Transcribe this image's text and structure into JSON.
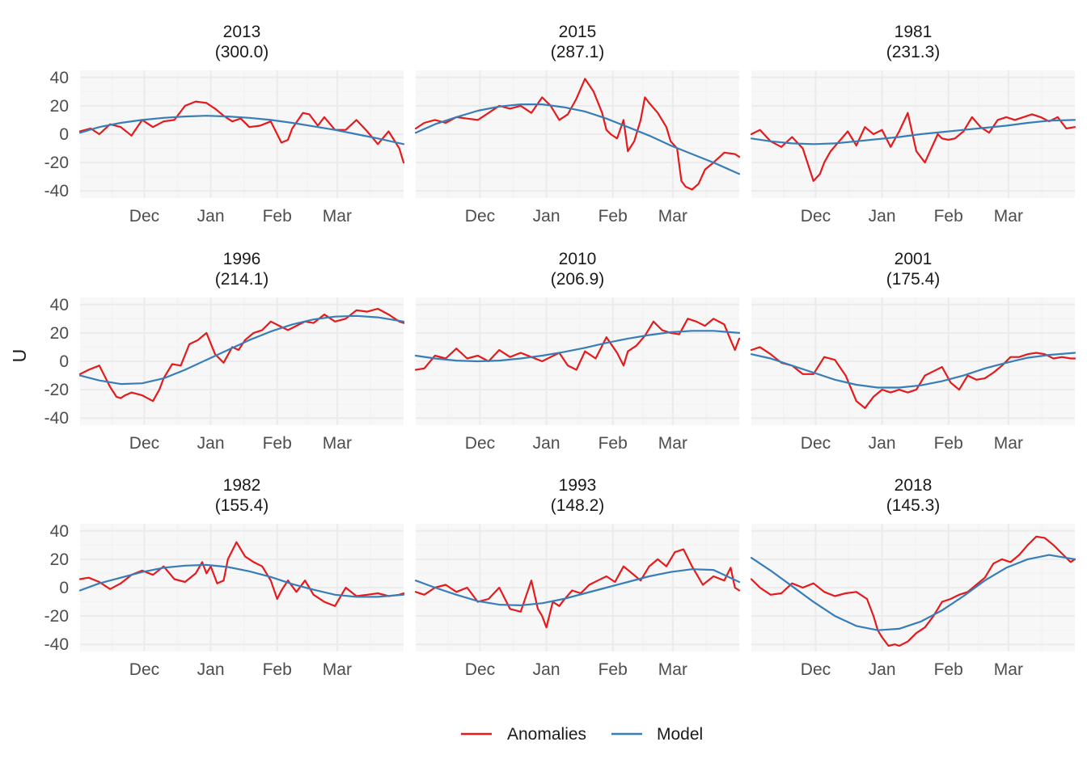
{
  "chart_data": {
    "type": "line",
    "ylabel": "U",
    "ylim": [
      -45,
      45
    ],
    "y_ticks": [
      40,
      20,
      0,
      -20,
      -40
    ],
    "x_ticks": [
      "Dec",
      "Jan",
      "Feb",
      "Mar"
    ],
    "x_tick_positions_days": [
      31,
      62,
      93,
      121
    ],
    "x_domain_days": [
      1,
      152
    ],
    "grid": true,
    "legend_position": "bottom",
    "colors": {
      "Anomalies": "#e41a1c",
      "Model": "#377eb8",
      "panel_bg": "#f7f7f7",
      "grid_major": "#ebebeb",
      "grid_minor": "#f2f2f2"
    },
    "legend": [
      {
        "name": "Anomalies",
        "color": "#e41a1c"
      },
      {
        "name": "Model",
        "color": "#377eb8"
      }
    ],
    "panels": [
      {
        "year": "2013",
        "value": "(300.0)",
        "anomalies": {
          "x": [
            1,
            6,
            10,
            15,
            20,
            25,
            30,
            35,
            40,
            45,
            50,
            55,
            60,
            64,
            68,
            72,
            76,
            80,
            85,
            90,
            95,
            98,
            100,
            105,
            108,
            112,
            115,
            120,
            125,
            130,
            135,
            140,
            145,
            150,
            152
          ],
          "y": [
            2,
            4,
            0,
            7,
            5,
            -1,
            10,
            5,
            9,
            10,
            20,
            23,
            22,
            18,
            13,
            9,
            11,
            5,
            6,
            9,
            -6,
            -4,
            4,
            15,
            14,
            6,
            12,
            3,
            3,
            10,
            2,
            -7,
            2,
            -10,
            -20
          ]
        },
        "model": {
          "x": [
            1,
            10,
            20,
            30,
            40,
            50,
            60,
            70,
            80,
            90,
            100,
            110,
            120,
            130,
            140,
            152
          ],
          "y": [
            1,
            5,
            8,
            10,
            11.5,
            12.5,
            13,
            12.5,
            11.5,
            10,
            8,
            5.5,
            3,
            0,
            -3,
            -7
          ]
        }
      },
      {
        "year": "2015",
        "value": "(287.1)",
        "anomalies": {
          "x": [
            1,
            5,
            10,
            15,
            20,
            25,
            30,
            35,
            40,
            45,
            50,
            55,
            60,
            64,
            68,
            72,
            76,
            80,
            84,
            88,
            90,
            92,
            95,
            98,
            100,
            103,
            106,
            108,
            110,
            114,
            118,
            120,
            123,
            125,
            127,
            130,
            133,
            136,
            140,
            145,
            150,
            152
          ],
          "y": [
            4,
            8,
            10,
            8,
            12,
            11,
            10,
            15,
            20,
            18,
            20,
            15,
            26,
            20,
            10,
            14,
            25,
            39,
            30,
            15,
            3,
            0,
            -3,
            10,
            -12,
            -5,
            10,
            26,
            22,
            15,
            5,
            -5,
            -10,
            -33,
            -37,
            -39,
            -35,
            -25,
            -20,
            -13,
            -14,
            -16
          ]
        },
        "model": {
          "x": [
            1,
            10,
            20,
            30,
            40,
            50,
            60,
            70,
            80,
            90,
            100,
            110,
            120,
            130,
            140,
            152
          ],
          "y": [
            1,
            7,
            12,
            16.5,
            19.5,
            21,
            21,
            19,
            16,
            11,
            5,
            -1,
            -8,
            -14,
            -20,
            -28
          ]
        }
      },
      {
        "year": "1981",
        "value": "(231.3)",
        "anomalies": {
          "x": [
            1,
            5,
            10,
            15,
            20,
            25,
            30,
            33,
            35,
            38,
            42,
            46,
            50,
            54,
            58,
            62,
            66,
            70,
            74,
            78,
            82,
            85,
            88,
            90,
            93,
            96,
            100,
            104,
            108,
            112,
            116,
            120,
            124,
            128,
            132,
            136,
            140,
            144,
            148,
            152
          ],
          "y": [
            0,
            3,
            -5,
            -9,
            -2,
            -10,
            -33,
            -28,
            -20,
            -12,
            -5,
            2,
            -8,
            5,
            0,
            3,
            -9,
            2,
            15,
            -12,
            -20,
            -10,
            0,
            -3,
            -4,
            -3,
            2,
            12,
            5,
            1,
            10,
            12,
            10,
            12,
            14,
            12,
            9,
            12,
            4,
            5
          ]
        },
        "model": {
          "x": [
            1,
            10,
            20,
            30,
            40,
            50,
            60,
            70,
            80,
            90,
            100,
            110,
            120,
            130,
            140,
            152
          ],
          "y": [
            -3,
            -5,
            -6.5,
            -7,
            -6.5,
            -5,
            -3.5,
            -2,
            0,
            1.5,
            3,
            4.5,
            6,
            8,
            9.5,
            10
          ]
        }
      },
      {
        "year": "1996",
        "value": "(214.1)",
        "anomalies": {
          "x": [
            1,
            5,
            10,
            15,
            18,
            20,
            22,
            25,
            30,
            35,
            38,
            40,
            44,
            48,
            52,
            56,
            60,
            64,
            68,
            72,
            75,
            78,
            82,
            86,
            90,
            94,
            98,
            102,
            106,
            110,
            115,
            120,
            125,
            130,
            135,
            140,
            145,
            150,
            152
          ],
          "y": [
            -9,
            -6,
            -3,
            -18,
            -25,
            -26,
            -24,
            -22,
            -24,
            -28,
            -20,
            -12,
            -2,
            -3,
            12,
            15,
            20,
            5,
            -1,
            10,
            8,
            15,
            20,
            22,
            28,
            25,
            22,
            25,
            28,
            27,
            33,
            28,
            30,
            36,
            35,
            37,
            33,
            28,
            27
          ]
        },
        "model": {
          "x": [
            1,
            10,
            20,
            30,
            40,
            50,
            60,
            70,
            80,
            90,
            100,
            110,
            120,
            130,
            140,
            152
          ],
          "y": [
            -10,
            -13.5,
            -16,
            -15.5,
            -12,
            -6,
            1,
            8,
            15,
            21,
            26,
            29.5,
            31.5,
            32,
            31,
            28
          ]
        }
      },
      {
        "year": "2010",
        "value": "(206.9)",
        "anomalies": {
          "x": [
            1,
            5,
            10,
            15,
            20,
            25,
            30,
            35,
            40,
            45,
            50,
            55,
            60,
            64,
            68,
            72,
            76,
            80,
            85,
            90,
            95,
            98,
            100,
            104,
            108,
            112,
            116,
            120,
            124,
            128,
            132,
            136,
            140,
            145,
            148,
            150,
            152
          ],
          "y": [
            -6,
            -5,
            4,
            2,
            9,
            2,
            4,
            0,
            8,
            3,
            6,
            3,
            0,
            3,
            6,
            -3,
            -6,
            7,
            2,
            17,
            6,
            -3,
            7,
            11,
            18,
            28,
            22,
            20,
            19,
            30,
            28,
            25,
            30,
            26,
            15,
            8,
            16
          ]
        },
        "model": {
          "x": [
            1,
            10,
            20,
            30,
            40,
            50,
            60,
            70,
            80,
            90,
            100,
            110,
            120,
            130,
            140,
            152
          ],
          "y": [
            4,
            2,
            0.5,
            0,
            0.5,
            2,
            4,
            6.5,
            9.5,
            13,
            16,
            18.5,
            20.5,
            21.5,
            21.5,
            20
          ]
        }
      },
      {
        "year": "2001",
        "value": "(175.4)",
        "anomalies": {
          "x": [
            1,
            5,
            10,
            15,
            20,
            25,
            30,
            35,
            40,
            45,
            50,
            54,
            58,
            62,
            66,
            70,
            74,
            78,
            82,
            86,
            90,
            94,
            98,
            102,
            106,
            110,
            114,
            118,
            122,
            126,
            130,
            134,
            138,
            142,
            146,
            150,
            152
          ],
          "y": [
            8,
            10,
            5,
            -1,
            -3,
            -9,
            -9,
            3,
            1,
            -10,
            -28,
            -33,
            -25,
            -20,
            -22,
            -20,
            -22,
            -20,
            -10,
            -7,
            -4,
            -15,
            -20,
            -10,
            -13,
            -12,
            -8,
            -3,
            3,
            3,
            5,
            6,
            5,
            2,
            3,
            2,
            2
          ]
        },
        "model": {
          "x": [
            1,
            10,
            20,
            30,
            40,
            50,
            60,
            70,
            80,
            90,
            100,
            110,
            120,
            130,
            140,
            152
          ],
          "y": [
            5,
            2,
            -3,
            -8,
            -13,
            -16.5,
            -18.5,
            -18.5,
            -17,
            -14,
            -10,
            -5,
            -1,
            2.5,
            4.5,
            6
          ]
        }
      },
      {
        "year": "1982",
        "value": "(155.4)",
        "anomalies": {
          "x": [
            1,
            5,
            10,
            15,
            20,
            25,
            30,
            35,
            40,
            45,
            50,
            55,
            58,
            60,
            62,
            65,
            68,
            70,
            74,
            78,
            82,
            86,
            90,
            93,
            95,
            98,
            102,
            106,
            110,
            115,
            120,
            125,
            130,
            135,
            140,
            145,
            150,
            152
          ],
          "y": [
            6,
            7,
            4,
            -1,
            3,
            9,
            12,
            9,
            15,
            6,
            4,
            10,
            18,
            10,
            15,
            3,
            5,
            20,
            32,
            22,
            18,
            15,
            5,
            -8,
            -2,
            5,
            -3,
            5,
            -5,
            -10,
            -13,
            0,
            -6,
            -5,
            -4,
            -6,
            -5,
            -4
          ]
        },
        "model": {
          "x": [
            1,
            10,
            20,
            30,
            40,
            50,
            60,
            70,
            80,
            90,
            100,
            110,
            120,
            130,
            140,
            152
          ],
          "y": [
            -2,
            3,
            7,
            11,
            14,
            15.5,
            16,
            14.5,
            11.5,
            7.5,
            2.5,
            -1.5,
            -5,
            -6.5,
            -6.5,
            -5
          ]
        }
      },
      {
        "year": "1993",
        "value": "(148.2)",
        "anomalies": {
          "x": [
            1,
            5,
            10,
            15,
            20,
            25,
            30,
            35,
            40,
            45,
            50,
            55,
            58,
            60,
            62,
            65,
            68,
            70,
            74,
            78,
            82,
            86,
            90,
            94,
            98,
            102,
            106,
            110,
            114,
            118,
            122,
            126,
            130,
            135,
            140,
            145,
            148,
            150,
            152
          ],
          "y": [
            -3,
            -5,
            0,
            2,
            -3,
            0,
            -10,
            -8,
            0,
            -15,
            -17,
            5,
            -15,
            -20,
            -28,
            -10,
            -13,
            -9,
            -2,
            -4,
            2,
            5,
            8,
            4,
            15,
            10,
            5,
            15,
            20,
            15,
            25,
            27,
            15,
            2,
            8,
            5,
            14,
            0,
            -2
          ]
        },
        "model": {
          "x": [
            1,
            10,
            20,
            30,
            40,
            50,
            60,
            70,
            80,
            90,
            100,
            110,
            120,
            130,
            140,
            152
          ],
          "y": [
            5,
            0,
            -5,
            -9.5,
            -12,
            -12.5,
            -11,
            -8,
            -4,
            0,
            4,
            8,
            11,
            13,
            12.5,
            4
          ]
        }
      },
      {
        "year": "2018",
        "value": "(145.3)",
        "anomalies": {
          "x": [
            1,
            5,
            10,
            15,
            20,
            25,
            30,
            35,
            40,
            45,
            50,
            55,
            58,
            60,
            62,
            65,
            68,
            70,
            74,
            78,
            82,
            86,
            90,
            94,
            98,
            102,
            106,
            110,
            114,
            118,
            122,
            126,
            130,
            134,
            138,
            142,
            146,
            150,
            152
          ],
          "y": [
            6,
            0,
            -5,
            -4,
            3,
            0,
            3,
            -3,
            -6,
            -4,
            -3,
            -8,
            -20,
            -30,
            -35,
            -41,
            -40,
            -41,
            -38,
            -32,
            -28,
            -20,
            -10,
            -8,
            -5,
            -3,
            2,
            7,
            17,
            20,
            18,
            23,
            30,
            36,
            35,
            30,
            24,
            18,
            20
          ]
        },
        "model": {
          "x": [
            1,
            10,
            20,
            30,
            40,
            50,
            60,
            70,
            80,
            90,
            100,
            110,
            120,
            130,
            140,
            152
          ],
          "y": [
            21,
            12,
            1,
            -10,
            -20,
            -27,
            -30,
            -29,
            -24,
            -16,
            -6,
            5,
            14,
            20,
            23,
            20
          ]
        }
      }
    ]
  }
}
